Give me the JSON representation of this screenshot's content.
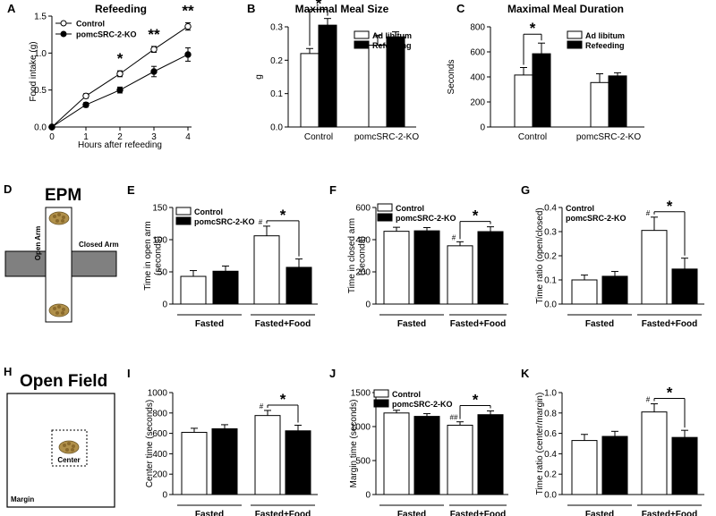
{
  "colors": {
    "control_fill": "#ffffff",
    "ko_fill": "#000000",
    "ink": "#000000",
    "arm_gray": "#808080",
    "food": "#b0904a"
  },
  "chart_data": [
    {
      "id": "A",
      "type": "line",
      "panel_label": "A",
      "title": "Refeeding",
      "xlabel": "Hours after refeeding",
      "ylabel": "Food intake (g)",
      "x": [
        0,
        1,
        2,
        3,
        4
      ],
      "xlim": [
        0,
        4
      ],
      "ylim": [
        0,
        1.5
      ],
      "yticks": [
        "0.0",
        "0.5",
        "1.0",
        "1.5"
      ],
      "xticks": [
        "0",
        "1",
        "2",
        "3",
        "4"
      ],
      "series": [
        {
          "name": "Control",
          "marker": "open",
          "values": [
            0,
            0.42,
            0.72,
            1.05,
            1.36
          ],
          "err": [
            0,
            0.03,
            0.04,
            0.04,
            0.05
          ]
        },
        {
          "name": "pomcSRC-2-KO",
          "marker": "filled",
          "values": [
            0,
            0.3,
            0.5,
            0.75,
            0.98
          ],
          "err": [
            0,
            0.03,
            0.04,
            0.07,
            0.09
          ]
        }
      ],
      "annotations": [
        {
          "x": 2,
          "text": "*"
        },
        {
          "x": 3,
          "text": "**"
        },
        {
          "x": 4,
          "text": "**"
        }
      ]
    },
    {
      "id": "B",
      "type": "bar",
      "panel_label": "B",
      "title": "Maximal Meal Size",
      "ylabel": "g",
      "ylim": [
        0,
        0.3
      ],
      "yticks": [
        "0.0",
        "0.1",
        "0.2",
        "0.3"
      ],
      "categories": [
        "Control",
        "pomcSRC-2-KO"
      ],
      "series": [
        {
          "name": "Ad libitum",
          "values": [
            0.22,
            0.245
          ],
          "err": [
            0.015,
            0.03
          ]
        },
        {
          "name": "Refeeding",
          "values": [
            0.305,
            0.27
          ],
          "err": [
            0.02,
            0.015
          ]
        }
      ],
      "legend": [
        "Ad libitum",
        "Refeeding"
      ],
      "annotations": [
        {
          "text": "*"
        }
      ]
    },
    {
      "id": "C",
      "type": "bar",
      "panel_label": "C",
      "title": "Maximal Meal Duration",
      "ylabel": "Seconds",
      "ylim": [
        0,
        800
      ],
      "yticks": [
        "0",
        "200",
        "400",
        "600",
        "800"
      ],
      "categories": [
        "Control",
        "pomcSRC-2-KO"
      ],
      "series": [
        {
          "name": "Ad libitum",
          "values": [
            415,
            355
          ],
          "err": [
            60,
            70
          ]
        },
        {
          "name": "Refeeding",
          "values": [
            585,
            408
          ],
          "err": [
            85,
            25
          ]
        }
      ],
      "legend": [
        "Ad libitum",
        "Refeeding"
      ],
      "annotations": [
        {
          "text": "*"
        }
      ]
    },
    {
      "id": "E",
      "type": "bar",
      "panel_label": "E",
      "title": "",
      "ylabel": "Time in open arm (seconds)",
      "ylim": [
        0,
        150
      ],
      "yticks": [
        "0",
        "50",
        "100",
        "150"
      ],
      "categories": [
        "Fasted",
        "Fasted+Food"
      ],
      "series": [
        {
          "name": "Control",
          "values": [
            43,
            106
          ],
          "err": [
            9,
            15
          ]
        },
        {
          "name": "pomcSRC-2-KO",
          "values": [
            51,
            57
          ],
          "err": [
            8,
            13
          ]
        }
      ],
      "legend": [
        "Control",
        "pomcSRC-2-KO"
      ],
      "annotations": [
        {
          "text": "#"
        },
        {
          "text": "*"
        }
      ]
    },
    {
      "id": "F",
      "type": "bar",
      "panel_label": "F",
      "title": "",
      "ylabel": "Time in closed arm (seconds)",
      "ylim": [
        0,
        600
      ],
      "yticks": [
        "0",
        "200",
        "400",
        "600"
      ],
      "categories": [
        "Fasted",
        "Fasted+Food"
      ],
      "series": [
        {
          "name": "Control",
          "values": [
            452,
            362
          ],
          "err": [
            25,
            25
          ]
        },
        {
          "name": "pomcSRC-2-KO",
          "values": [
            455,
            450
          ],
          "err": [
            20,
            30
          ]
        }
      ],
      "legend": [
        "Control",
        "pomcSRC-2-KO"
      ],
      "annotations": [
        {
          "text": "#"
        },
        {
          "text": "*"
        }
      ]
    },
    {
      "id": "G",
      "type": "bar",
      "panel_label": "G",
      "title": "",
      "ylabel": "Time ratio (open/closed)",
      "ylim": [
        0,
        0.4
      ],
      "yticks": [
        "0.0",
        "0.1",
        "0.2",
        "0.3",
        "0.4"
      ],
      "categories": [
        "Fasted",
        "Fasted+Food"
      ],
      "series": [
        {
          "name": "Control",
          "values": [
            0.1,
            0.305
          ],
          "err": [
            0.02,
            0.055
          ]
        },
        {
          "name": "pomcSRC-2-KO",
          "values": [
            0.115,
            0.145
          ],
          "err": [
            0.02,
            0.045
          ]
        }
      ],
      "legend": [
        "Control",
        "pomcSRC-2-KO"
      ],
      "annotations": [
        {
          "text": "#"
        },
        {
          "text": "*"
        }
      ]
    },
    {
      "id": "I",
      "type": "bar",
      "panel_label": "I",
      "title": "",
      "ylabel": "Center time (seconds)",
      "ylim": [
        0,
        1000
      ],
      "yticks": [
        "0",
        "200",
        "400",
        "600",
        "800",
        "1000"
      ],
      "categories": [
        "Fasted",
        "Fasted+Food"
      ],
      "series": [
        {
          "name": "Control",
          "values": [
            610,
            775
          ],
          "err": [
            40,
            50
          ]
        },
        {
          "name": "pomcSRC-2-KO",
          "values": [
            645,
            625
          ],
          "err": [
            40,
            55
          ]
        }
      ],
      "legend": [],
      "annotations": [
        {
          "text": "#"
        },
        {
          "text": "*"
        }
      ]
    },
    {
      "id": "J",
      "type": "bar",
      "panel_label": "J",
      "title": "",
      "ylabel": "Margin time (seconds)",
      "ylim": [
        0,
        1500
      ],
      "yticks": [
        "0",
        "500",
        "1000",
        "1500"
      ],
      "categories": [
        "Fasted",
        "Fasted+Food"
      ],
      "series": [
        {
          "name": "Control",
          "values": [
            1200,
            1020
          ],
          "err": [
            40,
            50
          ]
        },
        {
          "name": "pomcSRC-2-KO",
          "values": [
            1150,
            1175
          ],
          "err": [
            40,
            55
          ]
        }
      ],
      "legend": [
        "Control",
        "pomcSRC-2-KO"
      ],
      "annotations": [
        {
          "text": "##"
        },
        {
          "text": "*"
        }
      ]
    },
    {
      "id": "K",
      "type": "bar",
      "panel_label": "K",
      "title": "",
      "ylabel": "Time ratio (center/margin)",
      "ylim": [
        0,
        1.0
      ],
      "yticks": [
        "0.0",
        "0.2",
        "0.4",
        "0.6",
        "0.8",
        "1.0"
      ],
      "categories": [
        "Fasted",
        "Fasted+Food"
      ],
      "series": [
        {
          "name": "Control",
          "values": [
            0.53,
            0.81
          ],
          "err": [
            0.06,
            0.08
          ]
        },
        {
          "name": "pomcSRC-2-KO",
          "values": [
            0.57,
            0.56
          ],
          "err": [
            0.05,
            0.07
          ]
        }
      ],
      "legend": [],
      "annotations": [
        {
          "text": "#"
        },
        {
          "text": "*"
        }
      ]
    }
  ],
  "schematics": {
    "epm": {
      "panel_label": "D",
      "title": "EPM",
      "open_arm": "Open Arm",
      "closed_arm": "Closed Arm"
    },
    "open_field": {
      "panel_label": "H",
      "title": "Open Field",
      "center": "Center",
      "margin": "Margin"
    }
  }
}
